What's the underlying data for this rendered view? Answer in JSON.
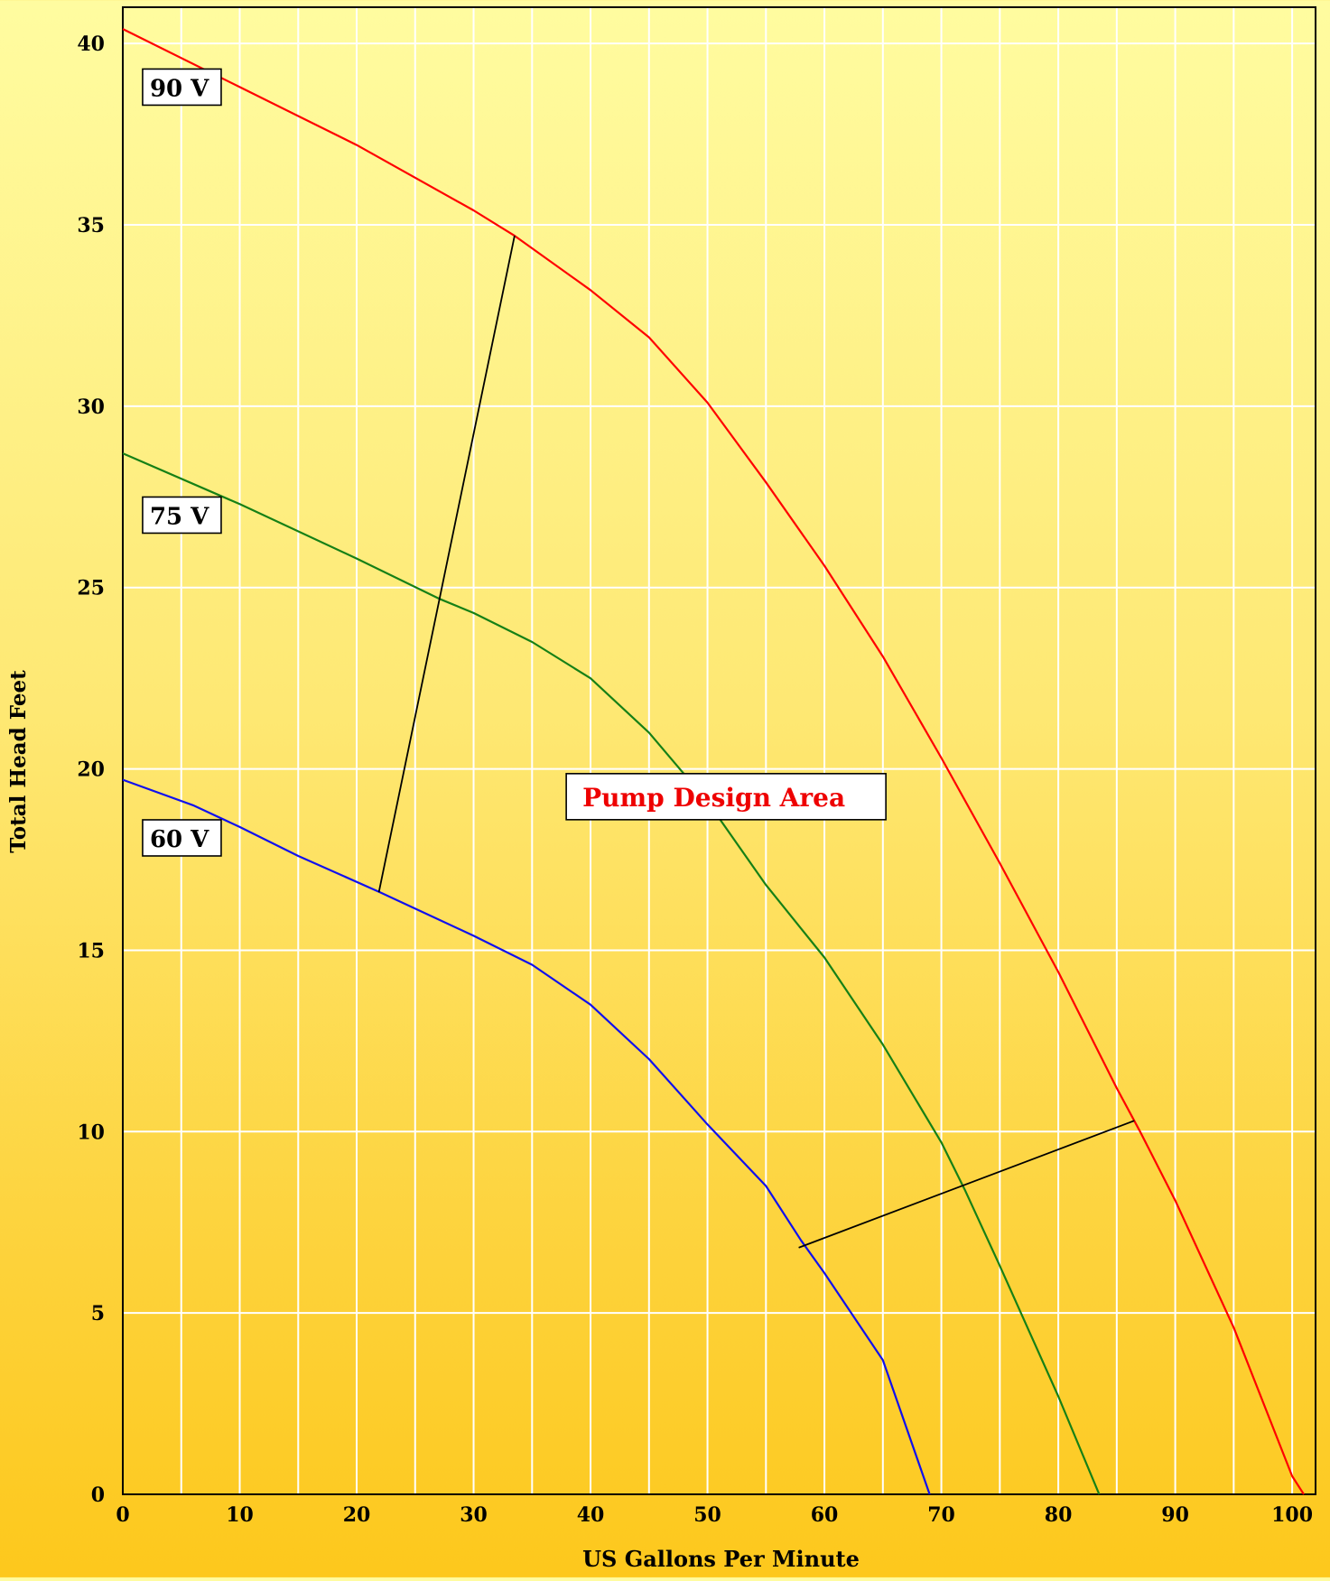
{
  "chart_data": {
    "type": "line",
    "title": "",
    "xlabel": "US Gallons Per Minute",
    "ylabel": "Total Head Feet",
    "xlim": [
      0,
      102
    ],
    "ylim": [
      0,
      41
    ],
    "xticks": [
      0,
      10,
      20,
      30,
      40,
      50,
      60,
      70,
      80,
      90,
      100
    ],
    "yticks": [
      0,
      5,
      10,
      15,
      20,
      25,
      30,
      35,
      40
    ],
    "grid_x_step": 5,
    "grid_y_step": 5,
    "grid": true,
    "series": [
      {
        "name": "90 V",
        "color": "#ff0000",
        "points": [
          [
            0,
            40.4
          ],
          [
            10,
            38.8
          ],
          [
            20,
            37.2
          ],
          [
            30,
            35.4
          ],
          [
            33.5,
            34.7
          ],
          [
            40,
            33.2
          ],
          [
            45,
            31.9
          ],
          [
            50,
            30.1
          ],
          [
            55,
            27.9
          ],
          [
            60,
            25.6
          ],
          [
            65,
            23.1
          ],
          [
            70,
            20.3
          ],
          [
            75,
            17.4
          ],
          [
            80,
            14.4
          ],
          [
            85,
            11.2
          ],
          [
            87,
            10.0
          ],
          [
            90,
            8.1
          ],
          [
            95,
            4.6
          ],
          [
            100,
            0.5
          ],
          [
            101,
            0
          ]
        ]
      },
      {
        "name": "75 V",
        "color": "#168016",
        "points": [
          [
            0,
            28.7
          ],
          [
            10,
            27.3
          ],
          [
            20,
            25.8
          ],
          [
            27,
            24.7
          ],
          [
            30,
            24.3
          ],
          [
            35,
            23.5
          ],
          [
            40,
            22.5
          ],
          [
            45,
            21.0
          ],
          [
            50,
            19.1
          ],
          [
            55,
            16.8
          ],
          [
            60,
            14.8
          ],
          [
            65,
            12.4
          ],
          [
            70,
            9.7
          ],
          [
            72,
            8.4
          ],
          [
            75,
            6.3
          ],
          [
            80,
            2.7
          ],
          [
            83.5,
            0
          ]
        ]
      },
      {
        "name": "60 V",
        "color": "#1010ee",
        "points": [
          [
            0,
            19.7
          ],
          [
            6,
            19.0
          ],
          [
            10,
            18.4
          ],
          [
            15,
            17.6
          ],
          [
            22,
            16.6
          ],
          [
            30,
            15.4
          ],
          [
            35,
            14.6
          ],
          [
            40,
            13.5
          ],
          [
            45,
            12.0
          ],
          [
            50,
            10.2
          ],
          [
            55,
            8.5
          ],
          [
            58,
            7.0
          ],
          [
            60,
            6.1
          ],
          [
            65,
            3.7
          ],
          [
            69,
            0
          ]
        ]
      }
    ],
    "design_area_boundaries": [
      {
        "color": "#000000",
        "points": [
          [
            21.9,
            16.6
          ],
          [
            33.5,
            34.7
          ]
        ]
      },
      {
        "color": "#000000",
        "points": [
          [
            57.8,
            6.8
          ],
          [
            86.5,
            10.3
          ]
        ]
      }
    ],
    "series_labels": [
      {
        "text": "90 V",
        "at": [
          1,
          38.4
        ]
      },
      {
        "text": "75 V",
        "at": [
          1,
          26.6
        ]
      },
      {
        "text": "60 V",
        "at": [
          1,
          17.7
        ]
      }
    ],
    "annotations": [
      {
        "text": "Pump Design Area",
        "at": [
          38,
          18.6
        ],
        "color": "#ee0000"
      }
    ],
    "colors": {
      "grid": "#ffffff",
      "frame": "#000000",
      "label_box_fill": "#ffffff",
      "label_box_border": "#000000"
    }
  }
}
